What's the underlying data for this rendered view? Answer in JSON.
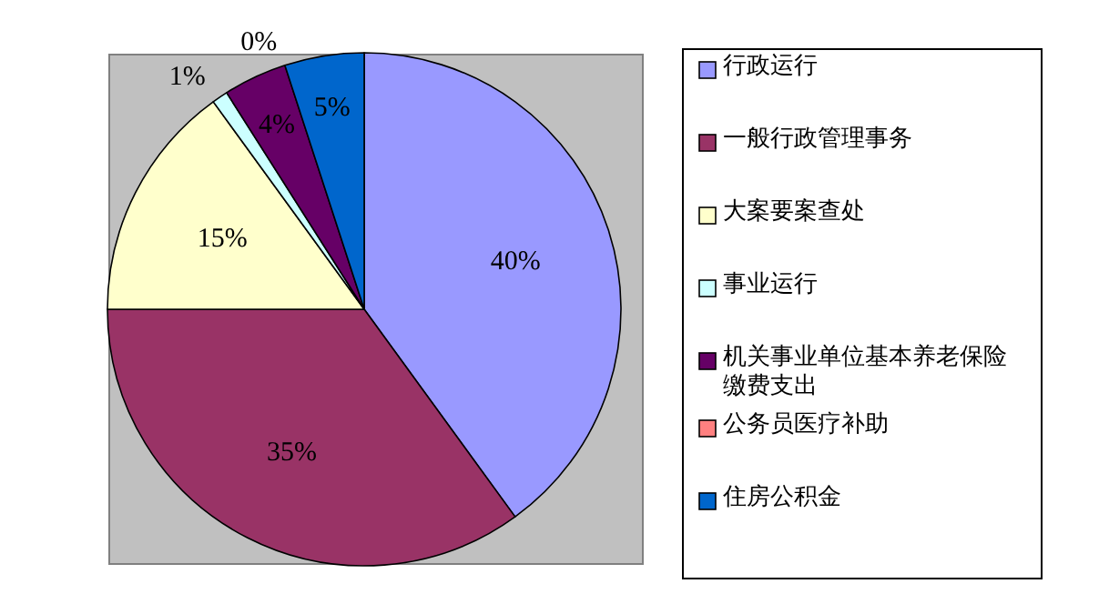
{
  "chart_data": {
    "type": "pie",
    "categories": [
      "行政运行",
      "一般行政管理事务",
      "大案要案查处",
      "事业运行",
      "机关事业单位基本养老保险缴费支出",
      "公务员医疗补助",
      "住房公积金"
    ],
    "values": [
      40,
      35,
      15,
      1,
      4,
      0,
      5
    ],
    "colors": [
      "#9999ff",
      "#993366",
      "#ffffcc",
      "#ccffff",
      "#660066",
      "#ff8080",
      "#0066cc"
    ],
    "value_labels": [
      "40%",
      "35%",
      "15%",
      "1%",
      "4%",
      "0%",
      "5%"
    ],
    "legend": "right"
  }
}
